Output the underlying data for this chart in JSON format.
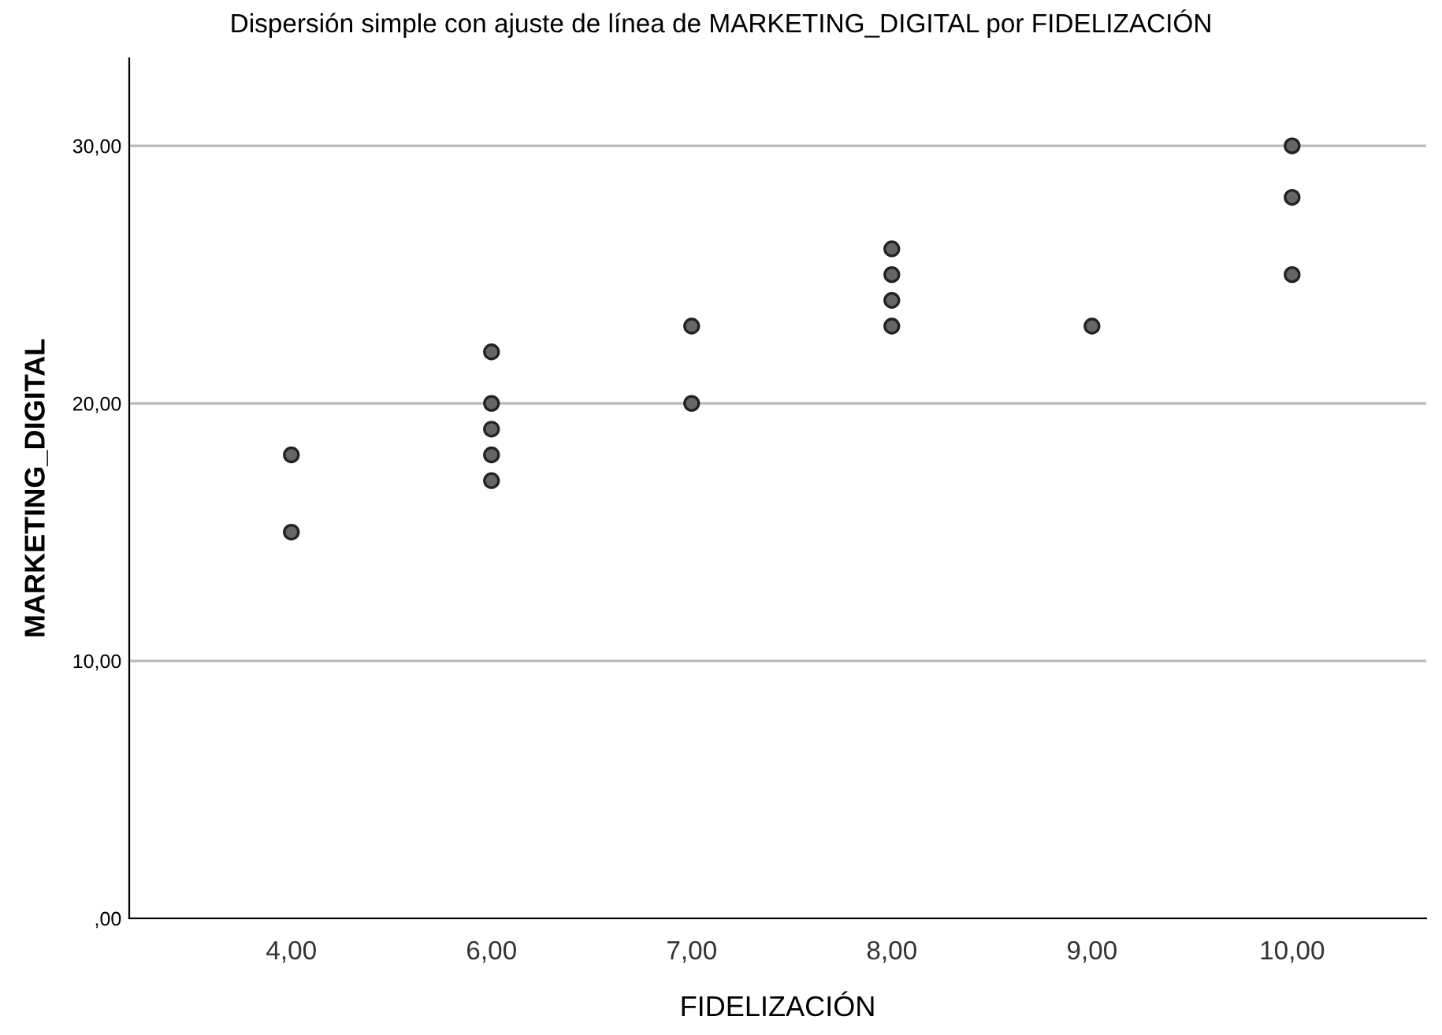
{
  "chart_data": {
    "type": "scatter",
    "title": "Dispersión simple con ajuste de línea de MARKETING_DIGITAL por FIDELIZACIÓN",
    "xlabel": "FIDELIZACIÓN",
    "ylabel": "MARKETING_DIGITAL",
    "categories": [
      "4,00",
      "6,00",
      "7,00",
      "8,00",
      "9,00",
      "10,00"
    ],
    "series": [
      {
        "color": "#666666",
        "x": [
          "4,00",
          "4,00",
          "6,00",
          "6,00",
          "6,00",
          "6,00",
          "6,00",
          "7,00",
          "7,00",
          "8,00",
          "8,00",
          "8,00",
          "8,00",
          "9,00",
          "10,00",
          "10,00",
          "10,00"
        ],
        "values": [
          18,
          15,
          22,
          20,
          19,
          18,
          17,
          23,
          20,
          26,
          25,
          24,
          23,
          23,
          30,
          28,
          25
        ]
      }
    ],
    "ylim": [
      0,
      33.4
    ],
    "yticks": [
      {
        "value": 0,
        "label": ",00"
      },
      {
        "value": 10,
        "label": "10,00"
      },
      {
        "value": 20,
        "label": "20,00"
      },
      {
        "value": 30,
        "label": "30,00"
      }
    ],
    "grid": "y",
    "marker": "circle"
  }
}
